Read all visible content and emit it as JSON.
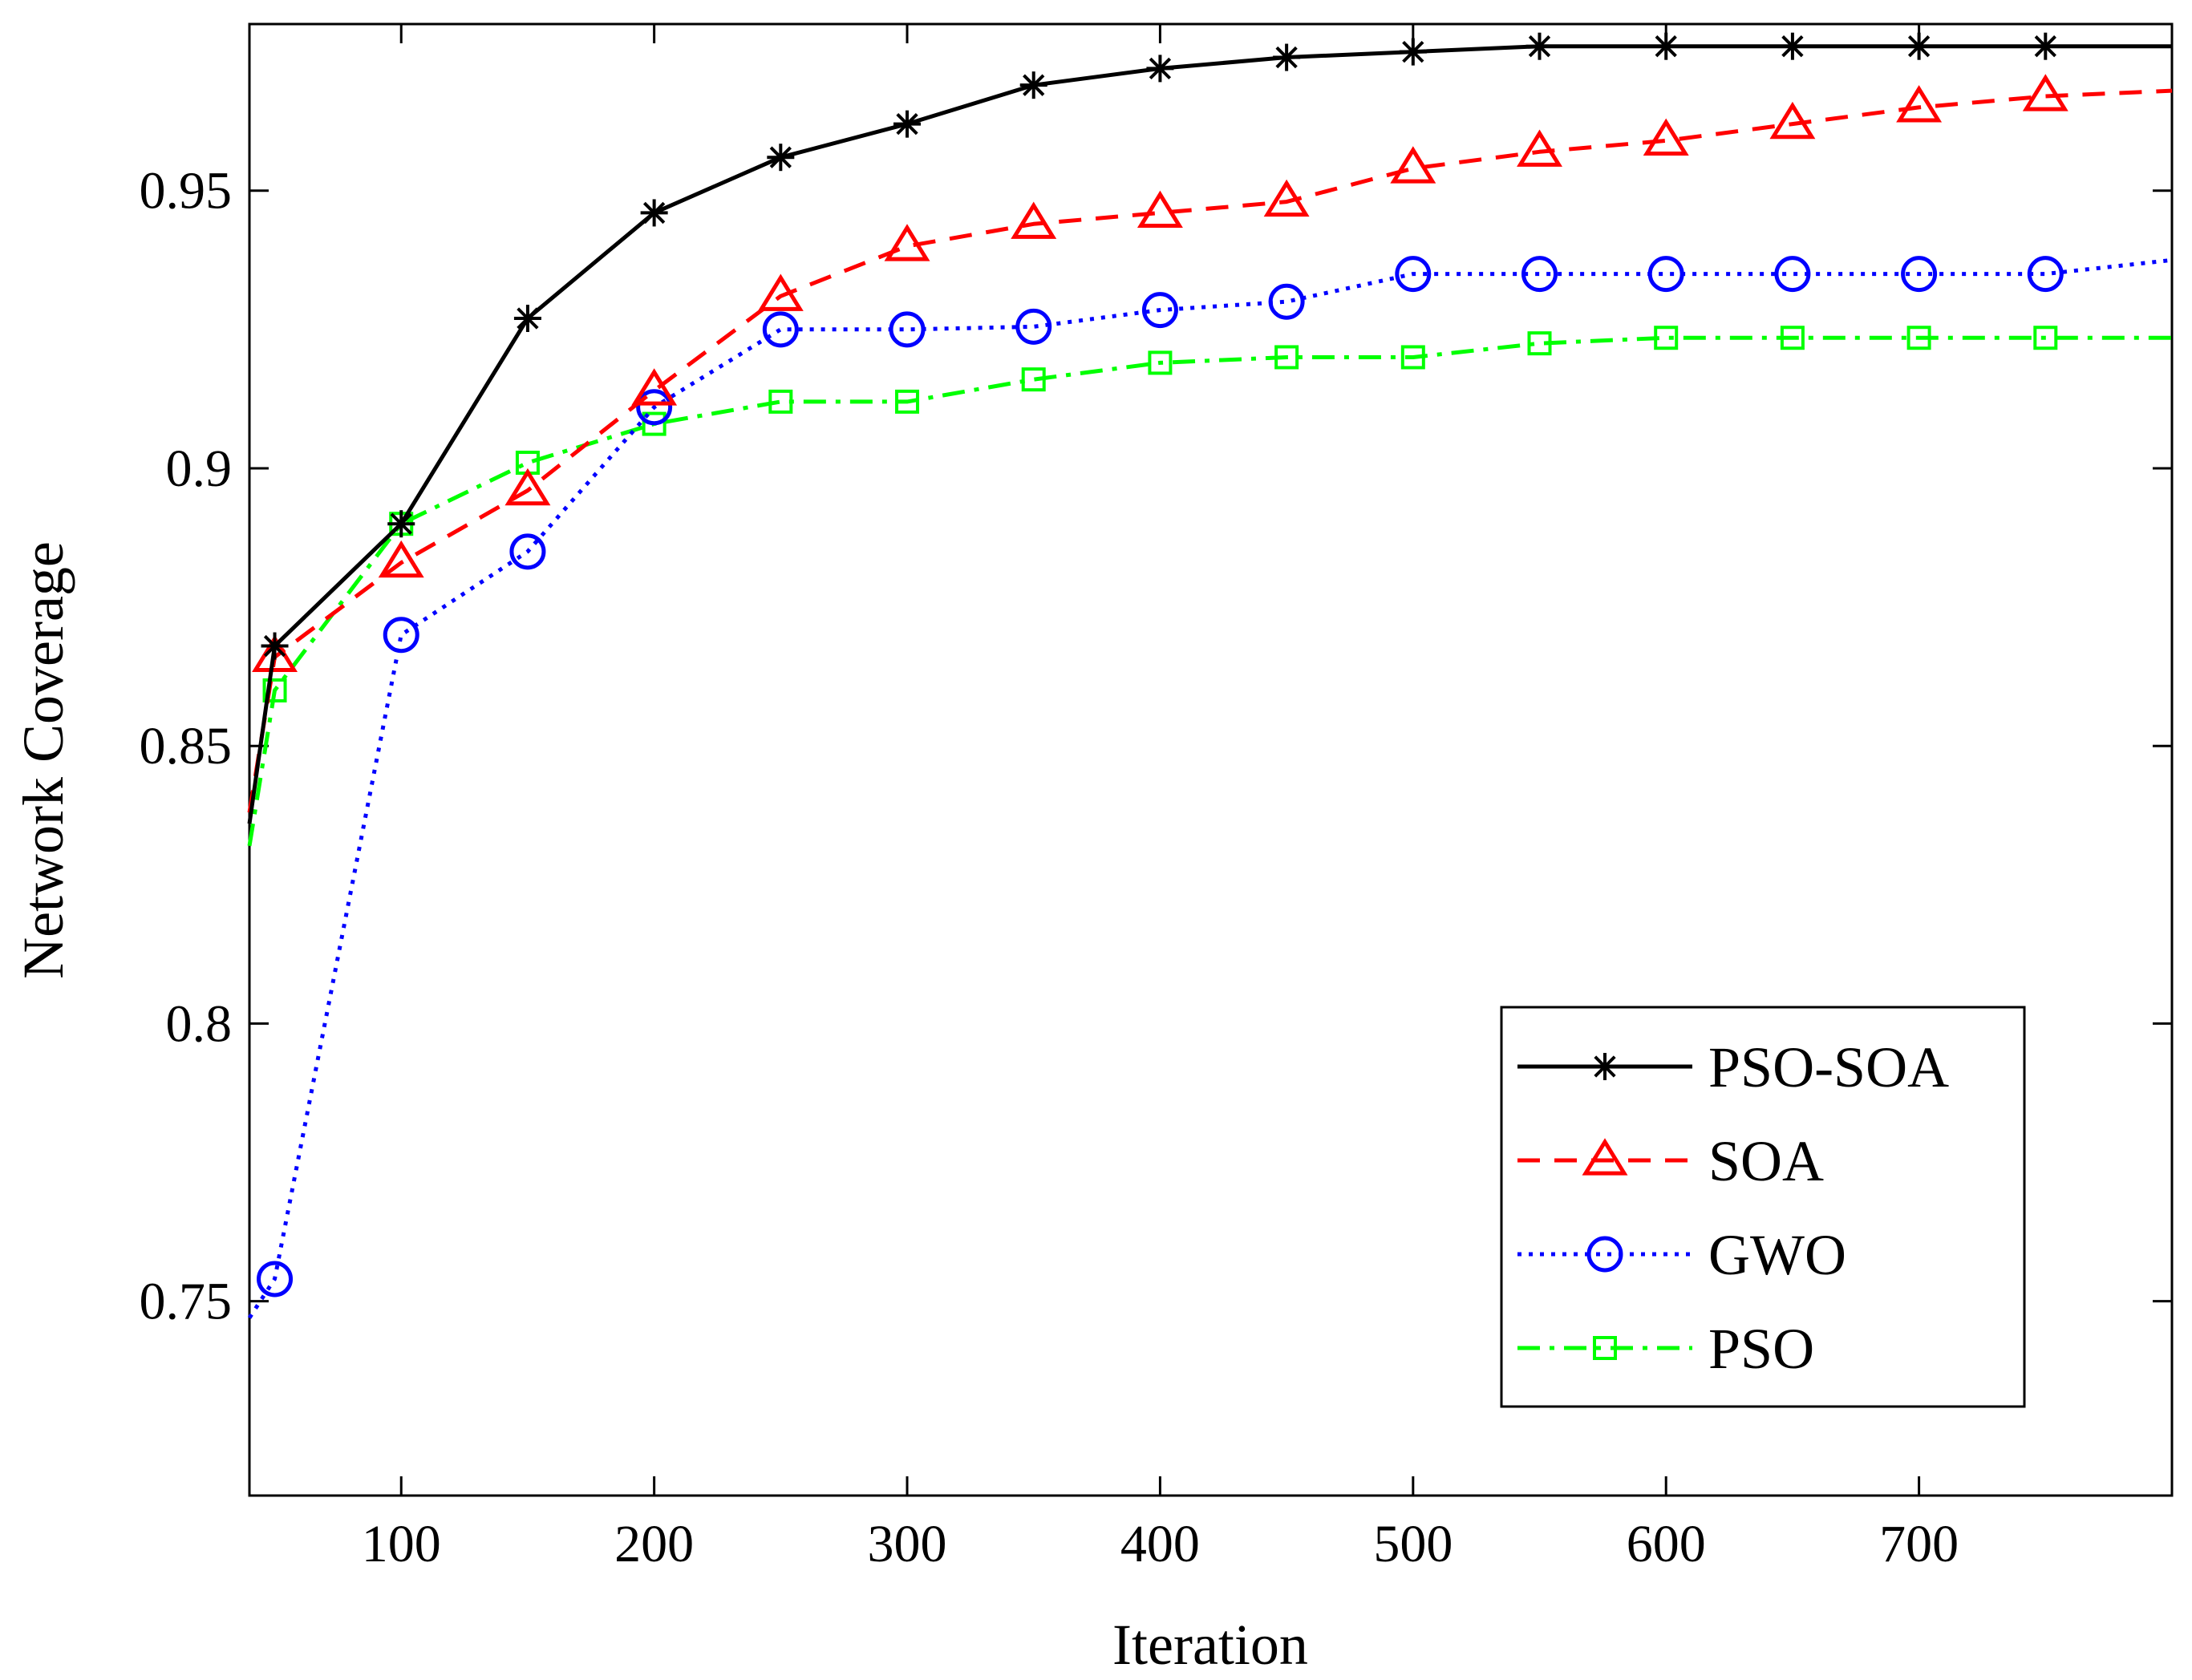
{
  "chart_data": {
    "type": "line",
    "title": "",
    "xlabel": "Iteration",
    "ylabel": "Network Coverage",
    "xlim": [
      40,
      800
    ],
    "ylim": [
      0.715,
      0.98
    ],
    "xticks": [
      100,
      200,
      300,
      400,
      500,
      600,
      700
    ],
    "xtick_labels": [
      "100",
      "200",
      "300",
      "400",
      "500",
      "600",
      "700"
    ],
    "yticks": [
      0.75,
      0.8,
      0.85,
      0.9,
      0.95
    ],
    "ytick_labels": [
      "0.75",
      "0.8",
      "0.85",
      "0.9",
      "0.95"
    ],
    "grid": false,
    "legend_position": "bottom-right",
    "series": [
      {
        "name": "PSO-SOA",
        "color": "#000000",
        "line_style": "solid",
        "marker": "asterisk",
        "x": [
          40,
          50,
          100,
          150,
          200,
          250,
          300,
          350,
          400,
          450,
          500,
          550,
          600,
          650,
          700,
          750,
          800
        ],
        "y": [
          0.836,
          0.868,
          0.89,
          0.927,
          0.946,
          0.956,
          0.962,
          0.969,
          0.972,
          0.974,
          0.975,
          0.976,
          0.976,
          0.976,
          0.976,
          0.976,
          0.976
        ]
      },
      {
        "name": "SOA",
        "color": "#ff0000",
        "line_style": "dashed",
        "marker": "triangle",
        "x": [
          40,
          50,
          100,
          150,
          200,
          250,
          300,
          350,
          400,
          450,
          500,
          550,
          600,
          650,
          700,
          750,
          800
        ],
        "y": [
          0.838,
          0.866,
          0.883,
          0.896,
          0.914,
          0.931,
          0.94,
          0.944,
          0.946,
          0.948,
          0.954,
          0.957,
          0.959,
          0.962,
          0.965,
          0.967,
          0.968
        ]
      },
      {
        "name": "GWO",
        "color": "#0000ff",
        "line_style": "dotted",
        "marker": "circle",
        "x": [
          40,
          50,
          100,
          150,
          200,
          250,
          300,
          350,
          400,
          450,
          500,
          550,
          600,
          650,
          700,
          750,
          800
        ],
        "y": [
          0.747,
          0.754,
          0.87,
          0.885,
          0.911,
          0.925,
          0.925,
          0.9255,
          0.9285,
          0.93,
          0.935,
          0.935,
          0.935,
          0.935,
          0.935,
          0.935,
          0.9375
        ]
      },
      {
        "name": "PSO",
        "color": "#00ff00",
        "line_style": "dashdot",
        "marker": "square",
        "x": [
          40,
          50,
          100,
          150,
          200,
          250,
          300,
          350,
          400,
          450,
          500,
          550,
          600,
          650,
          700,
          750,
          800
        ],
        "y": [
          0.832,
          0.86,
          0.89,
          0.901,
          0.908,
          0.912,
          0.912,
          0.916,
          0.919,
          0.92,
          0.92,
          0.9225,
          0.9235,
          0.9235,
          0.9235,
          0.9235,
          0.9235
        ]
      }
    ]
  }
}
